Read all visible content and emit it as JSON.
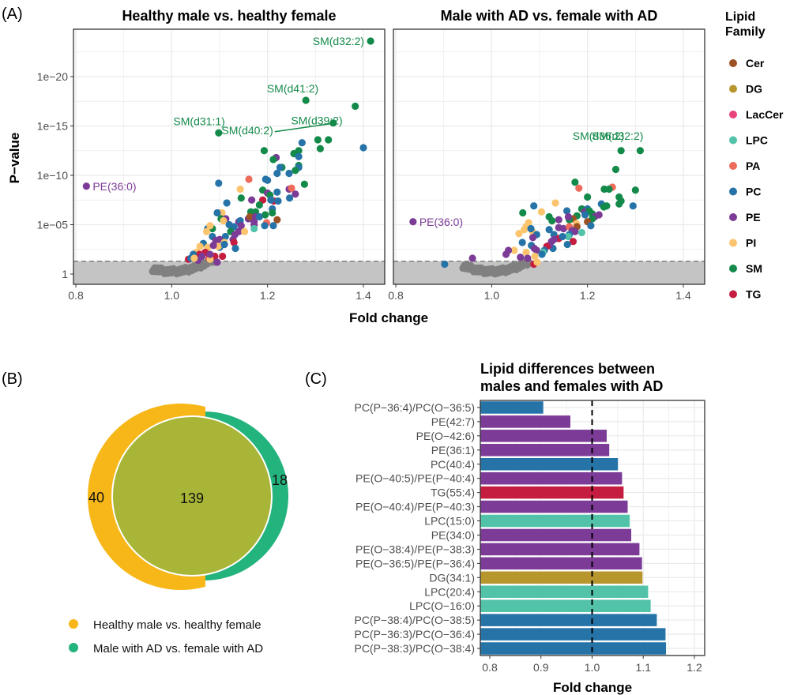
{
  "figure": {
    "panel_labels": [
      "(A)",
      "(B)",
      "(C)"
    ]
  },
  "colors": {
    "Cer": "#9b5123",
    "DG": "#b8962e",
    "LacCer": "#e8437a",
    "LPC": "#52c2a9",
    "PA": "#ee6a5b",
    "PC": "#2673a8",
    "PE": "#7b3b96",
    "PI": "#fbc46d",
    "SM": "#138a4a",
    "TG": "#c51d3f",
    "nonsig": "#808080",
    "shade": "#c4c4c4",
    "venn_a": "#f7b718",
    "venn_b": "#23b37c",
    "venn_overlap": "#a8b537"
  },
  "legend": {
    "title_line1": "Lipid",
    "title_line2": "Family",
    "items": [
      "Cer",
      "DG",
      "LacCer",
      "LPC",
      "PA",
      "PC",
      "PE",
      "PI",
      "SM",
      "TG"
    ]
  },
  "chart_data": [
    {
      "id": "A1",
      "type": "scatter",
      "title": "Healthy male vs. healthy female",
      "xlabel": "Fold change",
      "ylabel": "P−value",
      "xlim": [
        0.79,
        1.43
      ],
      "y_scale": "-log10",
      "ylim_neglog10": [
        -2.5,
        25
      ],
      "x_ticks": [
        "0.8",
        "1.0",
        "1.2",
        "1.4"
      ],
      "x_tick_values": [
        0.8,
        1.0,
        1.2,
        1.4
      ],
      "y_ticks": [
        "1",
        "1e−05",
        "1e−10",
        "1e−15",
        "1e−20"
      ],
      "y_tick_values": [
        0,
        5,
        10,
        15,
        20
      ],
      "significance_threshold_neglog10": 1.3,
      "grid": true,
      "labeled_points": [
        {
          "label": "SM(d32:2)",
          "family": "SM",
          "x": 1.415,
          "nlp": 23.6
        },
        {
          "label": "SM(d41:2)",
          "family": "SM",
          "x": 1.28,
          "nlp": 17.6
        },
        {
          "label": "SM(d39:2)",
          "family": "SM",
          "x": 1.383,
          "nlp": 17.0
        },
        {
          "label": "SM(d40:2)",
          "family": "SM",
          "x": 1.337,
          "nlp": 15.3
        },
        {
          "label": "SM(d31:1)",
          "family": "SM",
          "x": 1.098,
          "nlp": 14.3
        },
        {
          "label": "PE(36:0)",
          "family": "PE",
          "x": 0.822,
          "nlp": 8.9
        }
      ],
      "points": [
        [
          "PC",
          1.4,
          12.8
        ],
        [
          "SM",
          1.305,
          13.6
        ],
        [
          "SM",
          1.327,
          13.6
        ],
        [
          "SM",
          1.31,
          12.7
        ],
        [
          "PC",
          1.272,
          13.3
        ],
        [
          "SM",
          1.193,
          12.5
        ],
        [
          "PE",
          1.218,
          11.8
        ],
        [
          "SM",
          1.212,
          11.6
        ],
        [
          "SM",
          1.255,
          12.2
        ],
        [
          "SM",
          1.265,
          12.5
        ],
        [
          "PC",
          1.265,
          11.9
        ],
        [
          "SM",
          1.265,
          11.0
        ],
        [
          "PC",
          1.265,
          10.8
        ],
        [
          "SM",
          1.23,
          10.8
        ],
        [
          "PC",
          1.226,
          10.8
        ],
        [
          "SM",
          1.258,
          10.5
        ],
        [
          "PC",
          1.245,
          10.2
        ],
        [
          "PC",
          1.22,
          10.2
        ],
        [
          "SM",
          1.277,
          9.1
        ],
        [
          "PA",
          1.161,
          9.6
        ],
        [
          "PC",
          1.098,
          9.2
        ],
        [
          "PC",
          1.196,
          9.6
        ],
        [
          "PC",
          1.2,
          9.5
        ],
        [
          "PI",
          1.143,
          8.6
        ],
        [
          "PE",
          1.245,
          8.6
        ],
        [
          "PA",
          1.25,
          8.7
        ],
        [
          "SM",
          1.19,
          8.5
        ],
        [
          "PE",
          1.2,
          8.2
        ],
        [
          "PC",
          1.22,
          8.3
        ],
        [
          "SM",
          1.205,
          8.0
        ],
        [
          "PE",
          1.258,
          8.1
        ],
        [
          "PC",
          1.246,
          7.7
        ],
        [
          "SM",
          1.145,
          7.7
        ],
        [
          "PE",
          1.167,
          7.5
        ],
        [
          "TG",
          1.19,
          7.5
        ],
        [
          "TG",
          1.213,
          7.4
        ],
        [
          "PC",
          1.207,
          7.5
        ],
        [
          "PC",
          1.222,
          7.4
        ],
        [
          "PC",
          1.115,
          7.2
        ],
        [
          "SM",
          1.183,
          7.0
        ],
        [
          "PC",
          1.21,
          6.6
        ],
        [
          "SM",
          1.165,
          6.3
        ],
        [
          "SM",
          1.175,
          6.3
        ],
        [
          "PI",
          1.098,
          6.2
        ],
        [
          "PI",
          1.105,
          6.2
        ],
        [
          "PC",
          1.095,
          6.2
        ],
        [
          "SM",
          1.21,
          6.2
        ],
        [
          "SM",
          1.195,
          6.0
        ],
        [
          "SM",
          1.103,
          5.6
        ],
        [
          "PE",
          1.113,
          5.6
        ],
        [
          "PI",
          1.108,
          5.4
        ],
        [
          "PE",
          1.14,
          5.3
        ],
        [
          "PC",
          1.143,
          5.4
        ],
        [
          "PE",
          1.16,
          5.6
        ],
        [
          "Cer",
          1.163,
          5.8
        ],
        [
          "PE",
          1.175,
          5.8
        ],
        [
          "PE",
          1.172,
          5.3
        ],
        [
          "PA",
          1.198,
          5.2
        ],
        [
          "Cer",
          1.22,
          5.5
        ],
        [
          "PC",
          1.183,
          5.8
        ],
        [
          "PC",
          1.194,
          4.9
        ],
        [
          "PC",
          1.212,
          4.9
        ],
        [
          "PE",
          1.172,
          5.0
        ],
        [
          "LPC",
          1.172,
          4.6
        ],
        [
          "PC",
          1.12,
          5.0
        ],
        [
          "PE",
          1.145,
          4.9
        ],
        [
          "PC",
          1.13,
          4.8
        ],
        [
          "PC",
          1.075,
          4.6
        ],
        [
          "SM",
          1.085,
          4.6
        ],
        [
          "PI",
          1.08,
          4.9
        ],
        [
          "PI",
          1.073,
          4.3
        ],
        [
          "SM",
          1.123,
          4.3
        ],
        [
          "PE",
          1.14,
          4.3
        ],
        [
          "PI",
          1.152,
          4.3
        ],
        [
          "PE",
          1.132,
          4.0
        ],
        [
          "PC",
          1.112,
          3.8
        ],
        [
          "PC",
          1.085,
          3.8
        ],
        [
          "PE",
          1.092,
          3.4
        ],
        [
          "PE",
          1.1,
          3.5
        ],
        [
          "PI",
          1.11,
          3.2
        ],
        [
          "PC",
          1.1,
          2.7
        ],
        [
          "PE",
          1.128,
          3.5
        ],
        [
          "TG",
          1.13,
          3.2
        ],
        [
          "PC",
          1.133,
          2.6
        ],
        [
          "PC",
          1.066,
          3.1
        ],
        [
          "PI",
          1.059,
          2.8
        ],
        [
          "PI",
          1.075,
          2.7
        ],
        [
          "PI",
          1.097,
          2.8
        ],
        [
          "PE",
          1.087,
          2.9
        ],
        [
          "PC",
          1.11,
          3.0
        ],
        [
          "TG",
          1.07,
          2.2
        ],
        [
          "PI",
          1.052,
          2.2
        ],
        [
          "TG",
          1.058,
          2.0
        ],
        [
          "PE",
          1.063,
          1.8
        ],
        [
          "PC",
          1.045,
          2.0
        ],
        [
          "TG",
          1.035,
          1.5
        ],
        [
          "PE",
          1.055,
          1.4
        ],
        [
          "TG",
          1.078,
          1.6
        ],
        [
          "TG",
          1.09,
          1.8
        ],
        [
          "TG",
          1.106,
          1.8
        ],
        [
          "PE",
          1.095,
          1.2
        ],
        [
          "PC",
          1.04,
          1.6
        ],
        [
          "PI",
          1.08,
          1.5
        ],
        [
          "PE",
          1.08,
          2.0
        ],
        [
          "PI",
          1.047,
          1.6
        ]
      ],
      "nonsig_points_count_approx": 60
    },
    {
      "id": "A2",
      "type": "scatter",
      "title": "Male with AD vs. female with AD",
      "xlabel": "Fold change",
      "ylabel": "",
      "xlim": [
        0.79,
        1.43
      ],
      "y_scale": "-log10",
      "ylim_neglog10": [
        -2.5,
        25
      ],
      "x_ticks": [
        "0.8",
        "1.0",
        "1.2",
        "1.4"
      ],
      "x_tick_values": [
        0.8,
        1.0,
        1.2,
        1.4
      ],
      "significance_threshold_neglog10": 1.3,
      "grid": true,
      "labeled_points": [
        {
          "label": "SM(d36:2)",
          "family": "SM",
          "x": 1.27,
          "nlp": 12.5
        },
        {
          "label": "SM(d32:2)",
          "family": "SM",
          "x": 1.31,
          "nlp": 12.5
        },
        {
          "label": "PE(36:0)",
          "family": "PE",
          "x": 0.836,
          "nlp": 5.3
        }
      ],
      "points": [
        [
          "SM",
          1.259,
          10.6
        ],
        [
          "SM",
          1.174,
          9.3
        ],
        [
          "PA",
          1.182,
          8.7
        ],
        [
          "PA",
          1.252,
          8.8
        ],
        [
          "SM",
          1.235,
          8.6
        ],
        [
          "SM",
          1.245,
          8.6
        ],
        [
          "SM",
          1.3,
          8.5
        ],
        [
          "SM",
          1.2,
          7.8
        ],
        [
          "SM",
          1.266,
          7.8
        ],
        [
          "SM",
          1.27,
          7.4
        ],
        [
          "SM",
          1.266,
          7.1
        ],
        [
          "PI",
          1.133,
          7.2
        ],
        [
          "PC",
          1.088,
          6.9
        ],
        [
          "PC",
          1.295,
          6.9
        ],
        [
          "PC",
          1.229,
          7.1
        ],
        [
          "SM",
          1.234,
          6.8
        ],
        [
          "SM",
          1.24,
          6.9
        ],
        [
          "PI",
          1.104,
          6.3
        ],
        [
          "SM",
          1.065,
          6.2
        ],
        [
          "PC",
          1.157,
          6.4
        ],
        [
          "SM",
          1.188,
          6.6
        ],
        [
          "PC",
          1.2,
          6.6
        ],
        [
          "PE",
          1.194,
          6.3
        ],
        [
          "SM",
          1.204,
          6.4
        ],
        [
          "SM",
          1.21,
          6.1
        ],
        [
          "PE",
          1.224,
          6.0
        ],
        [
          "PE",
          1.215,
          5.8
        ],
        [
          "PC",
          1.195,
          6.0
        ],
        [
          "SM",
          1.178,
          5.9
        ],
        [
          "SM",
          1.12,
          5.8
        ],
        [
          "Cer",
          1.17,
          5.6
        ],
        [
          "SM",
          1.162,
          5.5
        ],
        [
          "PE",
          1.16,
          5.8
        ],
        [
          "PE",
          1.14,
          5.5
        ],
        [
          "SM",
          1.126,
          5.4
        ],
        [
          "SM",
          1.21,
          5.6
        ],
        [
          "Cer",
          1.2,
          5.3
        ],
        [
          "PC",
          1.207,
          4.9
        ],
        [
          "PI",
          1.077,
          5.2
        ],
        [
          "PI",
          1.177,
          5.1
        ],
        [
          "PC",
          1.12,
          4.5
        ],
        [
          "PE",
          1.14,
          4.7
        ],
        [
          "PE",
          1.15,
          4.6
        ],
        [
          "Cer",
          1.178,
          4.8
        ],
        [
          "PA",
          1.162,
          4.8
        ],
        [
          "PE",
          1.168,
          4.4
        ],
        [
          "PE",
          1.174,
          4.3
        ],
        [
          "LPC",
          1.188,
          4.2
        ],
        [
          "PI",
          1.072,
          4.8
        ],
        [
          "PI",
          1.085,
          4.3
        ],
        [
          "PI",
          1.068,
          4.5
        ],
        [
          "PI",
          1.057,
          4.1
        ],
        [
          "PC",
          1.082,
          4.6
        ],
        [
          "PC",
          1.094,
          4.0
        ],
        [
          "PE",
          1.086,
          3.7
        ],
        [
          "PC",
          1.13,
          4.0
        ],
        [
          "PC",
          1.162,
          4.0
        ],
        [
          "TG",
          1.14,
          3.6
        ],
        [
          "PE",
          1.13,
          3.5
        ],
        [
          "PE",
          1.125,
          3.3
        ],
        [
          "LPC",
          1.16,
          3.8
        ],
        [
          "PC",
          1.148,
          3.8
        ],
        [
          "TG",
          1.17,
          3.3
        ],
        [
          "PC",
          1.158,
          3.0
        ],
        [
          "PC",
          1.064,
          3.2
        ],
        [
          "PC",
          1.083,
          2.9
        ],
        [
          "PE",
          1.089,
          2.6
        ],
        [
          "PE",
          1.094,
          2.4
        ],
        [
          "PI",
          1.047,
          2.4
        ],
        [
          "PI",
          1.072,
          2.2
        ],
        [
          "PC",
          1.128,
          2.6
        ],
        [
          "PE",
          1.12,
          2.9
        ],
        [
          "TG",
          1.115,
          2.8
        ],
        [
          "PC",
          1.11,
          2.4
        ],
        [
          "LPC",
          1.107,
          2.2
        ],
        [
          "PE",
          1.035,
          2.4
        ],
        [
          "PE",
          1.03,
          2.0
        ],
        [
          "PI",
          1.09,
          1.8
        ],
        [
          "PE",
          1.06,
          1.7
        ],
        [
          "PC",
          1.105,
          2.0
        ],
        [
          "PE",
          0.96,
          1.6
        ],
        [
          "PC",
          0.902,
          1.0
        ],
        [
          "TG",
          1.088,
          1.0
        ],
        [
          "PE",
          1.075,
          1.6
        ],
        [
          "PI",
          1.095,
          1.2
        ]
      ],
      "nonsig_points_count_approx": 70
    },
    {
      "id": "B",
      "type": "venn",
      "sets": [
        {
          "name": "Healthy male vs. healthy female",
          "only": 40
        },
        {
          "name": "Male with AD vs. female with AD",
          "only": 18
        }
      ],
      "overlap": 139,
      "labels": {
        "left_only": "40",
        "overlap": "139",
        "right_only": "18"
      },
      "legend_placement": "bottom"
    },
    {
      "id": "C",
      "type": "bar",
      "orientation": "horizontal",
      "title_line1": "Lipid differences between",
      "title_line2": "males and females with AD",
      "xlabel": "Fold change",
      "xlim": [
        0.783,
        1.22
      ],
      "x_ticks": [
        "0.8",
        "0.9",
        "1.0",
        "1.1",
        "1.2"
      ],
      "x_tick_values": [
        0.8,
        0.9,
        1.0,
        1.1,
        1.2
      ],
      "reference_line": 1.0,
      "grid": true,
      "categories": [
        "PC(P−36:4)/PC(O−36:5)",
        "PE(42:7)",
        "PE(O−42:6)",
        "PE(36:1)",
        "PC(40:4)",
        "PE(O−40:5)/PE(P−40:4)",
        "TG(55:4)",
        "PE(O−40:4)/PE(P−40:3)",
        "LPC(15:0)",
        "PE(34:0)",
        "PE(O−38:4)/PE(P−38:3)",
        "PE(O−36:5)/PE(P−36:4)",
        "DG(34:1)",
        "LPC(20:4)",
        "LPC(O−16:0)",
        "PC(P−38:4)/PC(O−38:5)",
        "PC(P−36:3)/PC(O−36:4)",
        "PC(P−38:3)/PC(O−38:4)"
      ],
      "families": [
        "PC",
        "PE",
        "PE",
        "PE",
        "PC",
        "PE",
        "TG",
        "PE",
        "LPC",
        "PE",
        "PE",
        "PE",
        "DG",
        "LPC",
        "LPC",
        "PC",
        "PC",
        "PC"
      ],
      "values": [
        0.905,
        0.958,
        1.029,
        1.034,
        1.051,
        1.059,
        1.062,
        1.07,
        1.074,
        1.077,
        1.093,
        1.098,
        1.099,
        1.11,
        1.115,
        1.127,
        1.144,
        1.145
      ]
    }
  ]
}
